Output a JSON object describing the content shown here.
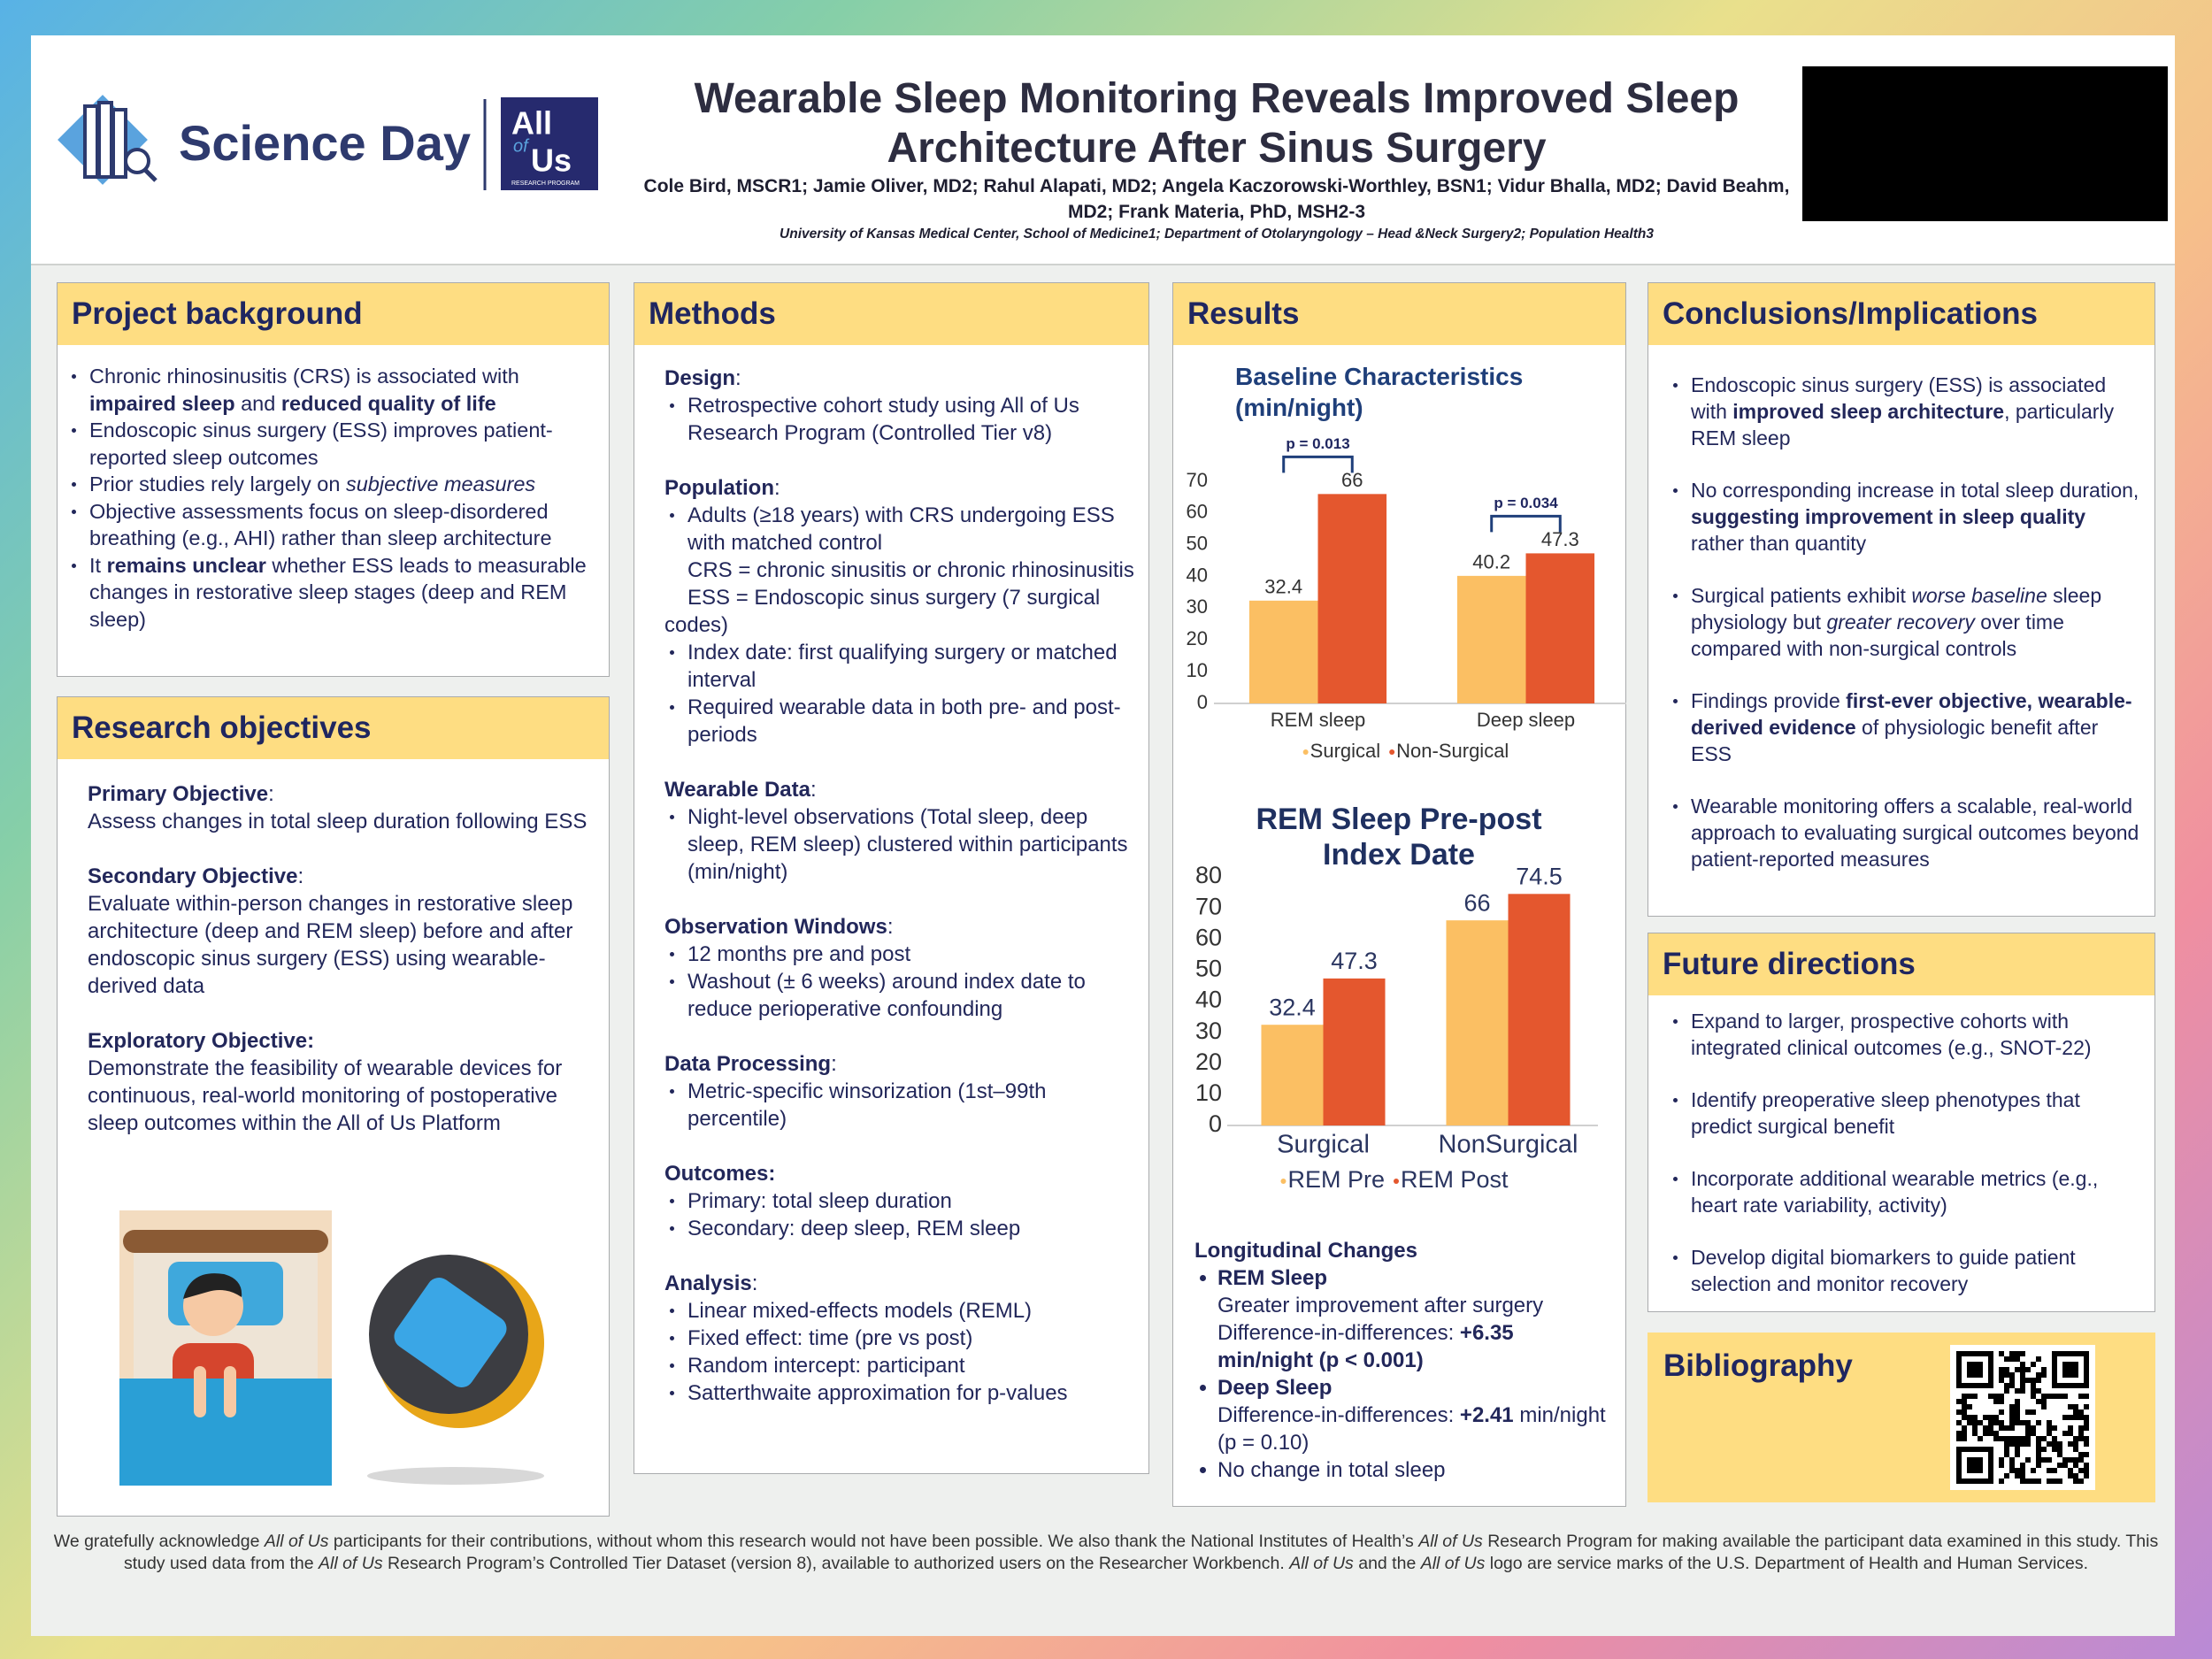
{
  "header": {
    "logo_text": "Science Day",
    "partner_logo": [
      "All",
      "of",
      "Us",
      "RESEARCH PROGRAM"
    ],
    "title": "Wearable Sleep Monitoring Reveals Improved Sleep Architecture After Sinus Surgery",
    "authors": "Cole Bird, MSCR1; Jamie Oliver, MD2; Rahul Alapati, MD2; Angela Kaczorowski-Worthley, BSN1; Vidur Bhalla, MD2; David Beahm, MD2; Frank Materia, PhD, MSH2-3",
    "affiliation": "University of Kansas Medical Center, School of Medicine1; Department of Otolaryngology – Head &Neck Surgery2; Population Health3"
  },
  "background": {
    "heading": "Project background",
    "groups": [
      [
        {
          "bullet": [
            "Chronic rhinosinusitis (CRS) is associated with ",
            {
              "b": "impaired sleep"
            },
            " and ",
            {
              "b": "reduced quality of life"
            }
          ]
        },
        {
          "bullet": [
            "Endoscopic sinus surgery (ESS) improves patient-reported sleep outcomes"
          ]
        },
        {
          "bullet": [
            "Prior studies rely largely on ",
            {
              "i": "subjective measures"
            }
          ]
        },
        {
          "bullet": [
            "Objective assessments focus on sleep-disordered breathing (e.g., AHI) rather than sleep architecture"
          ]
        },
        {
          "bullet": [
            "It ",
            {
              "b": "remains unclear"
            },
            " whether ESS leads to measurable changes in restorative sleep stages (deep and REM sleep)"
          ]
        }
      ]
    ]
  },
  "objectives": {
    "heading": "Research objectives",
    "groups": [
      [
        {
          "heading": [
            {
              "b": "Primary Objective"
            },
            ":"
          ]
        },
        {
          "text": [
            "Assess changes in total sleep duration following ESS"
          ]
        }
      ],
      [
        {
          "heading": [
            {
              "b": "Secondary Objective"
            },
            ":"
          ]
        },
        {
          "text": [
            "Evaluate within-person changes in restorative sleep architecture (deep and REM sleep) before and after endoscopic sinus surgery (ESS) using wearable-derived data"
          ]
        }
      ],
      [
        {
          "heading": [
            {
              "b": "Exploratory Objective:"
            }
          ]
        },
        {
          "text": [
            "Demonstrate the feasibility of wearable devices for continuous, real-world monitoring of postoperative sleep outcomes within the All of Us Platform"
          ]
        }
      ]
    ]
  },
  "methods": {
    "heading": "Methods",
    "groups": [
      [
        {
          "heading": [
            {
              "b": "Design"
            },
            ":"
          ]
        },
        {
          "bullet": [
            "Retrospective cohort study using All of Us Research Program (Controlled Tier v8)"
          ]
        }
      ],
      [
        {
          "heading": [
            {
              "b": "Population"
            },
            ":"
          ]
        },
        {
          "bullet": [
            "Adults (≥18 years) with CRS undergoing ESS with matched control"
          ]
        },
        {
          "text": [
            "CRS = chronic sinusitis or chronic rhinosinusitis"
          ]
        },
        {
          "text": [
            "ESS = Endoscopic sinus surgery (7 surgical codes)"
          ]
        },
        {
          "bullet": [
            "Index date: first qualifying surgery or matched interval"
          ]
        },
        {
          "bullet": [
            "Required wearable data in both pre- and post-periods"
          ]
        }
      ],
      [
        {
          "heading": [
            {
              "b": "Wearable Data"
            },
            ":"
          ]
        },
        {
          "bullet": [
            "Night-level observations (Total sleep, deep sleep, REM sleep) clustered within participants (min/night)"
          ]
        }
      ],
      [
        {
          "heading": [
            {
              "b": "Observation Windows"
            },
            ":"
          ]
        },
        {
          "bullet": [
            "12 months pre and post"
          ]
        },
        {
          "bullet": [
            "Washout (± 6 weeks) around index date to reduce perioperative confounding"
          ]
        }
      ],
      [
        {
          "heading": [
            {
              "b": "Data Processing"
            },
            ":"
          ]
        },
        {
          "bullet": [
            "Metric-specific winsorization (1st–99th percentile)"
          ]
        }
      ],
      [
        {
          "heading": [
            {
              "b": "Outcomes:"
            }
          ]
        },
        {
          "bullet": [
            "Primary: total sleep duration"
          ]
        },
        {
          "bullet": [
            "Secondary: deep sleep, REM sleep"
          ]
        }
      ],
      [
        {
          "heading": [
            {
              "b": "Analysis"
            },
            ":"
          ]
        },
        {
          "bullet": [
            "Linear mixed-effects models (REML)"
          ]
        },
        {
          "bullet": [
            "Fixed effect: time (pre vs post)"
          ]
        },
        {
          "bullet": [
            "Random intercept: participant"
          ]
        },
        {
          "bullet": [
            "Satterthwaite approximation for p-values"
          ]
        }
      ]
    ]
  },
  "results": {
    "heading": "Results",
    "charts": [
      {
        "type": "bar",
        "title": "Baseline Characteristics (min/night)",
        "categories": [
          "REM sleep",
          "Deep sleep"
        ],
        "series": [
          {
            "name": "Surgical",
            "color": "#fbbf63",
            "values": [
              32.4,
              40.2
            ]
          },
          {
            "name": "Non-Surgical",
            "color": "#e4572e",
            "values": [
              66,
              47.3
            ]
          }
        ],
        "annotations": [
          "p = 0.013",
          "p = 0.034"
        ],
        "ylim": [
          0,
          70
        ],
        "yticks": [
          0,
          10,
          20,
          30,
          40,
          50,
          60,
          70
        ]
      },
      {
        "type": "bar",
        "title": "REM Sleep Pre-post Index Date",
        "categories": [
          "Surgical",
          "NonSurgical"
        ],
        "series": [
          {
            "name": "REM Pre",
            "color": "#fbbf63",
            "values": [
              32.4,
              66
            ]
          },
          {
            "name": "REM Post",
            "color": "#e4572e",
            "values": [
              47.3,
              74.5
            ]
          }
        ],
        "ylim": [
          0,
          80
        ],
        "yticks": [
          0,
          10,
          20,
          30,
          40,
          50,
          60,
          70,
          80
        ]
      }
    ],
    "groups": [
      [
        {
          "heading": [
            {
              "b": "Longitudinal Changes"
            }
          ]
        },
        {
          "bullet": [
            {
              "b": "REM Sleep"
            }
          ]
        },
        {
          "text": [
            "Greater improvement after surgery"
          ]
        },
        {
          "text": [
            "Difference-in-differences: ",
            {
              "b": "+6.35 min/night (p < 0.001)"
            }
          ]
        },
        {
          "bullet": [
            {
              "b": "Deep Sleep"
            }
          ]
        },
        {
          "text": [
            "Difference-in-differences: ",
            {
              "b": "+2.41"
            },
            " min/night (p = 0.10)"
          ]
        },
        {
          "bullet": [
            "No change in total sleep"
          ]
        }
      ]
    ]
  },
  "conclusions": {
    "heading": "Conclusions/Implications",
    "groups": [
      [
        {
          "bullet": [
            "Endoscopic sinus surgery (ESS) is associated with ",
            {
              "b": "improved sleep architecture"
            },
            ", particularly REM sleep"
          ]
        }
      ],
      [
        {
          "bullet": [
            "No corresponding increase in total sleep duration, ",
            {
              "b": "suggesting improvement in sleep quality"
            },
            " rather than quantity"
          ]
        }
      ],
      [
        {
          "bullet": [
            "Surgical patients exhibit ",
            {
              "i": "worse baseline"
            },
            " sleep physiology but ",
            {
              "i": "greater recovery"
            },
            " over time compared with non-surgical controls"
          ]
        }
      ],
      [
        {
          "bullet": [
            "Findings provide ",
            {
              "b": "first-ever objective, wearable-derived evidence"
            },
            " of physiologic benefit after ESS"
          ]
        }
      ],
      [
        {
          "bullet": [
            "Wearable monitoring offers a scalable, real-world approach to evaluating surgical outcomes beyond patient-reported measures"
          ]
        }
      ]
    ]
  },
  "future": {
    "heading": "Future directions",
    "groups": [
      [
        {
          "bullet": [
            "Expand to larger, prospective cohorts with integrated clinical outcomes (e.g., SNOT-22)"
          ]
        }
      ],
      [
        {
          "bullet": [
            "Identify preoperative sleep phenotypes that predict surgical benefit"
          ]
        }
      ],
      [
        {
          "bullet": [
            "Incorporate additional wearable metrics (e.g., heart rate variability, activity)"
          ]
        }
      ],
      [
        {
          "bullet": [
            "Develop digital biomarkers to guide patient selection and monitor recovery"
          ]
        }
      ]
    ]
  },
  "bibliography": {
    "heading": "Bibliography"
  },
  "footer": {
    "groups": [
      [
        {
          "text": [
            "We gratefully acknowledge ",
            {
              "i": "All of Us"
            },
            " participants for their contributions, without whom this research would not have been possible. We also thank the National Institutes of Health’s ",
            {
              "i": "All of Us"
            },
            " Research Program for making available the participant data examined in this study. This study used data from the ",
            {
              "i": "All of Us"
            },
            " Research Program’s Controlled Tier Dataset (version 8), available to authorized users on the Researcher Workbench. ",
            {
              "i": "All of Us"
            },
            " and the ",
            {
              "i": "All of Us"
            },
            " logo are service marks of the U.S. Department of Health and Human Services."
          ]
        }
      ]
    ]
  }
}
